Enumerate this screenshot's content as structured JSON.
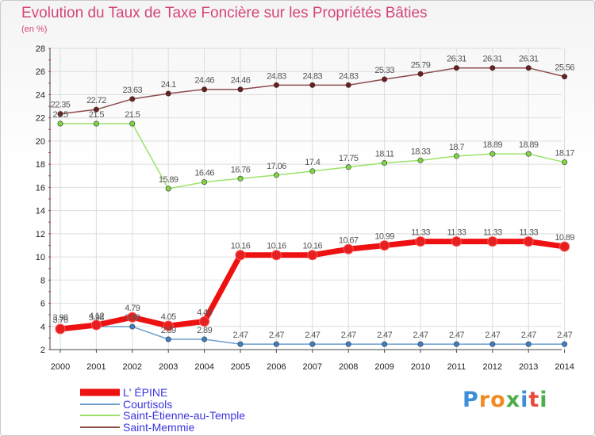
{
  "header": {
    "title": "Evolution du Taux de Taxe Foncière sur les Propriétés Bâties",
    "unit": "(en %)"
  },
  "brand": {
    "text": "Proxiti"
  },
  "colors": {
    "title": "#d4457a",
    "legend_text": "#3a36e0",
    "axis_text": "#222222",
    "grid": "#dddddd",
    "axis_ticks": "#d4457a"
  },
  "chart_data": {
    "type": "line",
    "x": [
      "2000",
      "2001",
      "2002",
      "2003",
      "2004",
      "2005",
      "2006",
      "2007",
      "2008",
      "2009",
      "2010",
      "2011",
      "2012",
      "2013",
      "2014"
    ],
    "ylim": [
      2,
      28
    ],
    "yticks": [
      2,
      4,
      6,
      8,
      10,
      12,
      14,
      16,
      18,
      20,
      22,
      24,
      26,
      28
    ],
    "grid": true,
    "legend_position": "bottom-left",
    "series": [
      {
        "name": "L' ÉPINE",
        "color": "#ee1111",
        "point_color": "#e62020",
        "width": 7,
        "values": [
          3.78,
          4.12,
          4.79,
          4.05,
          4.43,
          10.16,
          10.16,
          10.16,
          10.67,
          10.99,
          11.33,
          11.33,
          11.33,
          11.33,
          10.89
        ],
        "labels": [
          "3.78",
          "4.12",
          "4.79",
          "4.05",
          "4.43",
          "10.16",
          "10.16",
          "10.16",
          "10.67",
          "10.99",
          "11.33",
          "11.33",
          "11.33",
          "11.33",
          "10.89"
        ]
      },
      {
        "name": "Courtisols",
        "color": "#6f9fcf",
        "point_color": "#3a82c8",
        "width": 1.5,
        "values": [
          3.98,
          3.98,
          3.98,
          2.89,
          2.89,
          2.47,
          2.47,
          2.47,
          2.47,
          2.47,
          2.47,
          2.47,
          2.47,
          2.47,
          2.47
        ],
        "labels": [
          "3.98",
          "3.98",
          "3.98",
          "2.89",
          "2.89",
          "2.47",
          "2.47",
          "2.47",
          "2.47",
          "2.47",
          "2.47",
          "2.47",
          "2.47",
          "2.47",
          "2.47"
        ]
      },
      {
        "name": "Saint-Étienne-au-Temple",
        "color": "#9ce26a",
        "point_color": "#7ed640",
        "width": 1.5,
        "values": [
          21.5,
          21.5,
          21.5,
          15.89,
          16.46,
          16.76,
          17.06,
          17.4,
          17.75,
          18.11,
          18.33,
          18.7,
          18.89,
          18.89,
          18.17
        ],
        "labels": [
          "21.5",
          "21.5",
          "21.5",
          "15.89",
          "16.46",
          "16.76",
          "17.06",
          "17.4",
          "17.75",
          "18.11",
          "18.33",
          "18.7",
          "18.89",
          "18.89",
          "18.17"
        ]
      },
      {
        "name": "Saint-Memmie",
        "color": "#8e4d4d",
        "point_color": "#6e1e1e",
        "width": 1.5,
        "values": [
          22.35,
          22.72,
          23.63,
          24.1,
          24.46,
          24.46,
          24.83,
          24.83,
          24.83,
          25.33,
          25.79,
          26.31,
          26.31,
          26.31,
          25.56
        ],
        "labels": [
          "22.35",
          "22.72",
          "23.63",
          "24.1",
          "24.46",
          "24.46",
          "24.83",
          "24.83",
          "24.83",
          "25.33",
          "25.79",
          "26.31",
          "26.31",
          "26.31",
          "25.56"
        ]
      }
    ]
  }
}
